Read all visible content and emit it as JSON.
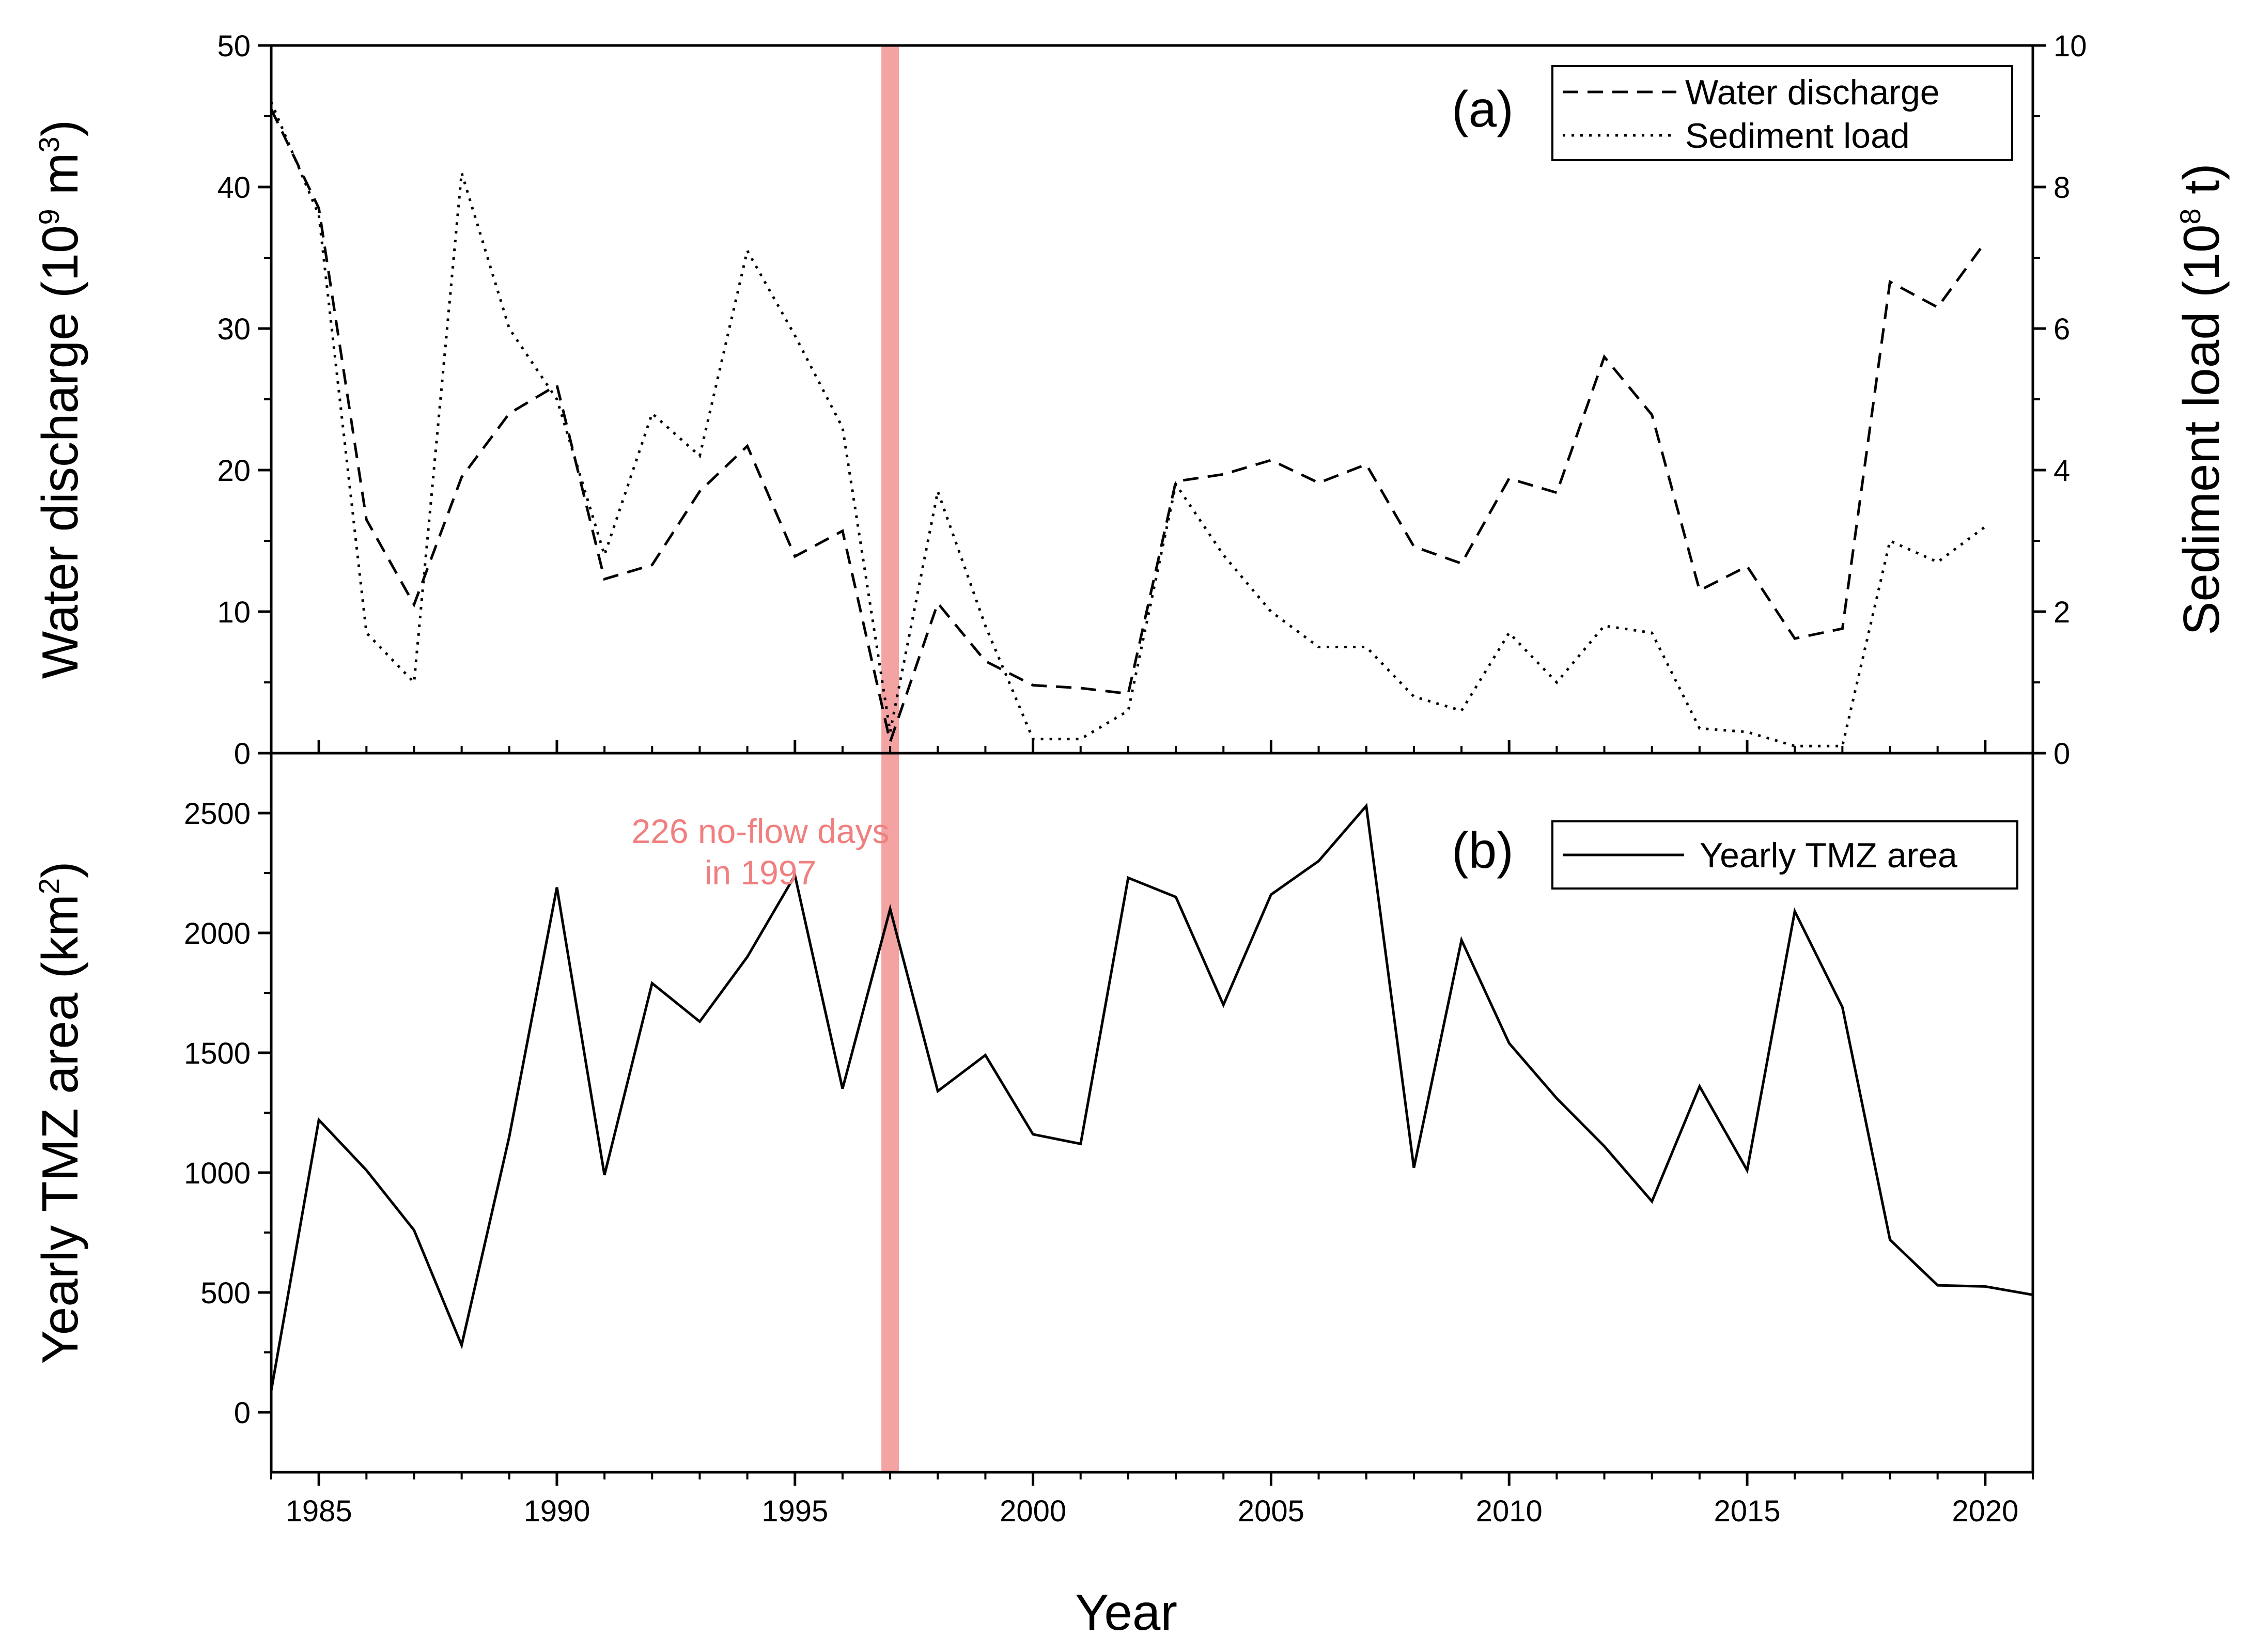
{
  "chart_data": [
    {
      "type": "line",
      "panel_label": "(a)",
      "xlabel": "",
      "x": [
        1984,
        1985,
        1986,
        1987,
        1988,
        1989,
        1990,
        1991,
        1992,
        1993,
        1994,
        1995,
        1996,
        1997,
        1998,
        1999,
        2000,
        2001,
        2002,
        2003,
        2004,
        2005,
        2006,
        2007,
        2008,
        2009,
        2010,
        2011,
        2012,
        2013,
        2014,
        2015,
        2016,
        2017,
        2018,
        2019,
        2020
      ],
      "xlim": [
        1984,
        2021
      ],
      "y_left": {
        "label_main": "Water discharge (10",
        "label_sup": "9",
        "label_unit": " m",
        "label_sup2": "3",
        "label_end": ")",
        "lim": [
          0,
          50
        ],
        "ticks": [
          "0",
          "10",
          "20",
          "30",
          "40",
          "50"
        ]
      },
      "y_right": {
        "label_main": "Sediment load (10",
        "label_sup": "8",
        "label_end": " t)",
        "lim": [
          0,
          10
        ],
        "ticks": [
          "0",
          "2",
          "4",
          "6",
          "8",
          "10"
        ]
      },
      "series": [
        {
          "name": "Water discharge",
          "axis": "left",
          "style": "dashed",
          "values": [
            45.5,
            38.5,
            16.5,
            10.5,
            19.5,
            24.0,
            26.0,
            12.3,
            13.3,
            18.5,
            21.7,
            13.9,
            15.7,
            0.8,
            10.6,
            6.5,
            4.8,
            4.6,
            4.2,
            19.2,
            19.7,
            20.7,
            19.1,
            20.4,
            14.6,
            13.4,
            19.4,
            18.4,
            28.0,
            23.9,
            11.5,
            13.2,
            8.1,
            8.8,
            33.3,
            31.5,
            36.1
          ]
        },
        {
          "name": "Sediment load",
          "axis": "right",
          "style": "dotted",
          "values": [
            9.2,
            7.6,
            1.7,
            1.0,
            8.2,
            6.0,
            5.0,
            2.8,
            4.8,
            4.2,
            7.1,
            5.9,
            4.6,
            0.3,
            3.7,
            1.8,
            0.2,
            0.2,
            0.6,
            3.8,
            2.8,
            2.0,
            1.5,
            1.5,
            0.8,
            0.6,
            1.7,
            1.0,
            1.8,
            1.7,
            0.35,
            0.3,
            0.1,
            0.1,
            3.0,
            2.7,
            3.2
          ]
        }
      ]
    },
    {
      "type": "line",
      "panel_label": "(b)",
      "xlabel": "Year",
      "x": [
        1984,
        1985,
        1986,
        1987,
        1988,
        1989,
        1990,
        1991,
        1992,
        1993,
        1994,
        1995,
        1996,
        1997,
        1998,
        1999,
        2000,
        2001,
        2002,
        2003,
        2004,
        2005,
        2006,
        2007,
        2008,
        2009,
        2010,
        2011,
        2012,
        2013,
        2014,
        2015,
        2016,
        2017,
        2018,
        2019,
        2020,
        2021
      ],
      "xlim": [
        1984,
        2021
      ],
      "x_ticks": [
        "1985",
        "1990",
        "1995",
        "2000",
        "2005",
        "2010",
        "2015",
        "2020"
      ],
      "y_left": {
        "label_main": "Yearly TMZ area (km",
        "label_sup": "2",
        "label_end": ")",
        "lim": [
          -250,
          2750
        ],
        "ticks": [
          "0",
          "500",
          "1000",
          "1500",
          "2000",
          "2500"
        ]
      },
      "series": [
        {
          "name": "Yearly TMZ area",
          "style": "solid",
          "values": [
            90,
            1220,
            1010,
            760,
            280,
            1150,
            2190,
            990,
            1790,
            1630,
            1900,
            2240,
            1350,
            2100,
            1340,
            1490,
            1160,
            1120,
            2230,
            2150,
            1700,
            2160,
            2300,
            2530,
            1020,
            1970,
            1540,
            1310,
            1110,
            880,
            1360,
            1010,
            2090,
            1690,
            720,
            530,
            525,
            490
          ]
        }
      ]
    }
  ],
  "annotation": {
    "year": 1997,
    "line1": "226 no-flow days",
    "line2": "in 1997",
    "color": "#f08080",
    "band_color": "#f4a3a3"
  }
}
